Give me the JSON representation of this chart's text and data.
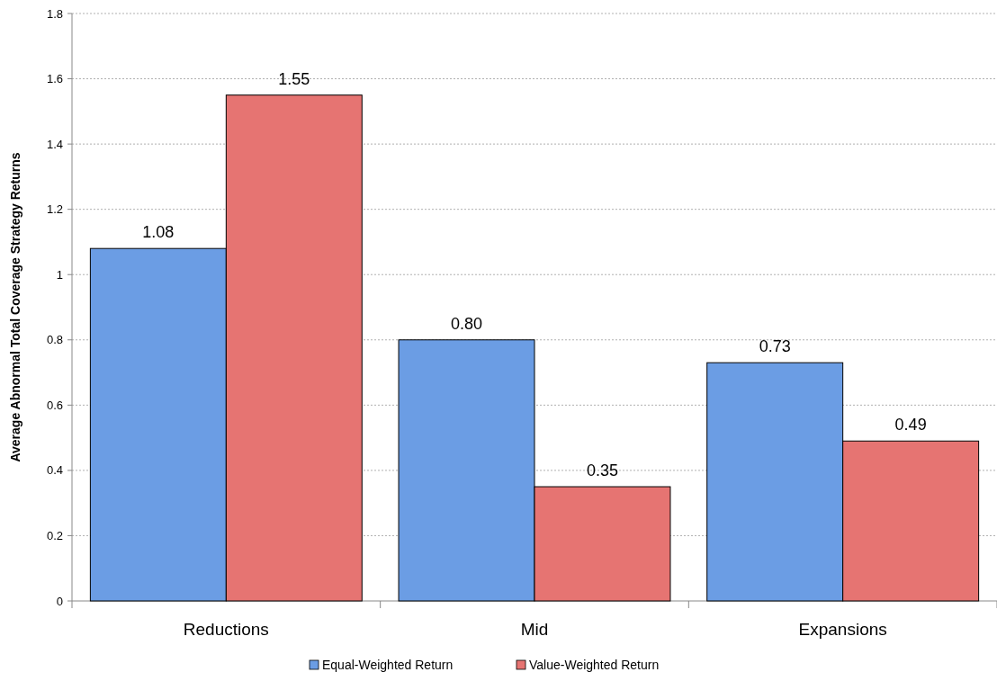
{
  "chart_data": {
    "type": "bar",
    "ylabel": "Average Abnormal Total Coverage Strategy Returns",
    "categories": [
      "Reductions",
      "Mid",
      "Expansions"
    ],
    "series": [
      {
        "name": "Equal-Weighted Return",
        "color": "#6b9de4",
        "values": [
          1.08,
          0.8,
          0.73
        ],
        "value_labels": [
          "1.08",
          "0.80",
          "0.73"
        ]
      },
      {
        "name": "Value-Weighted Return",
        "color": "#e67472",
        "values": [
          1.55,
          0.35,
          0.49
        ],
        "value_labels": [
          "1.55",
          "0.35",
          "0.49"
        ]
      }
    ],
    "ylim": [
      0,
      1.8
    ],
    "yticks": [
      0,
      0.2,
      0.4,
      0.6,
      0.8,
      1,
      1.2,
      1.4,
      1.6,
      1.8
    ],
    "grid": "y",
    "legend": "bottom"
  }
}
